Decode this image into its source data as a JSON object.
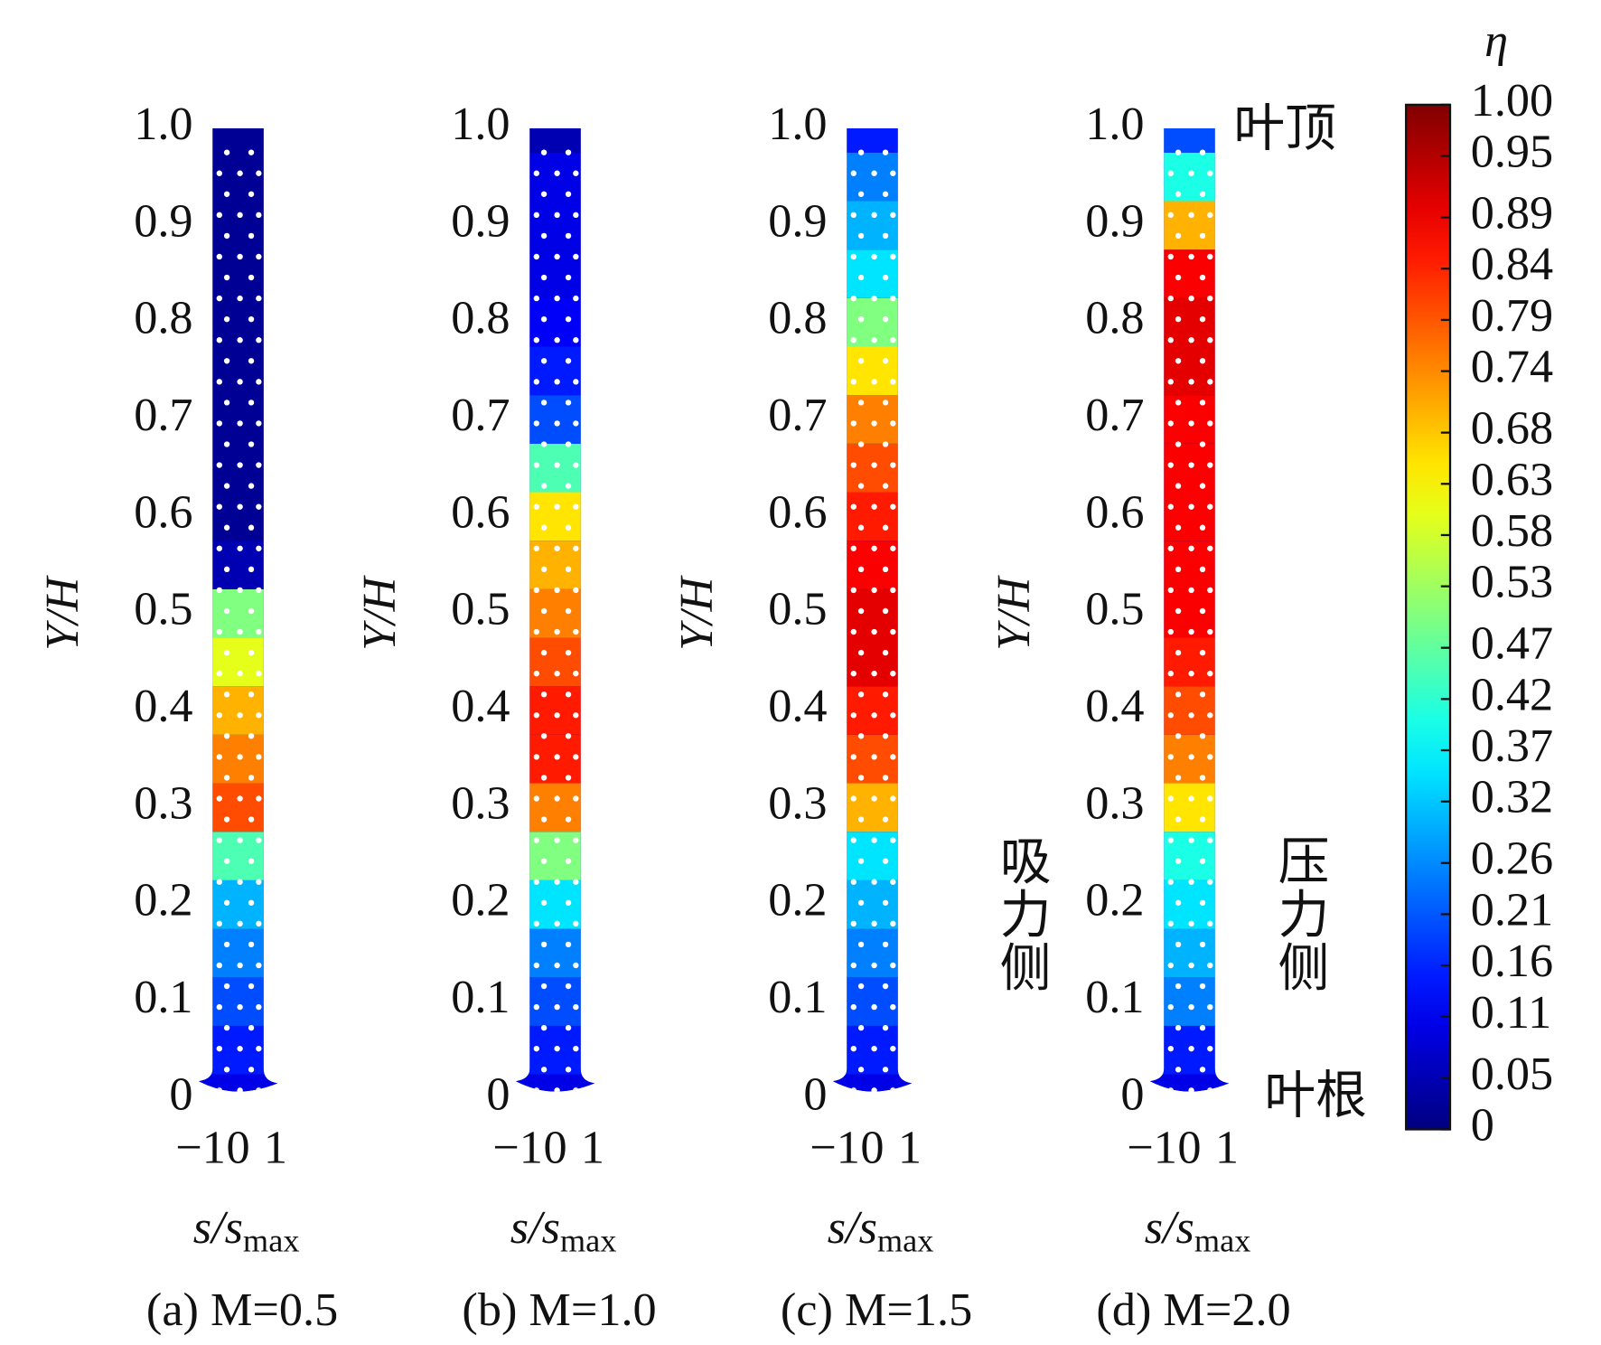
{
  "chart_data": [
    {
      "type": "contour",
      "caption": "(a) M=0.5",
      "y_label": "Y/H",
      "x_label": {
        "main": "s/s",
        "sub": "max"
      },
      "xlim": [
        -1.5,
        1.5
      ],
      "xticks": [
        {
          "value": -1,
          "label": "−1"
        },
        0,
        1
      ],
      "ylim": [
        0,
        1
      ],
      "yticks": [
        0,
        0.1,
        0.2,
        0.3,
        0.4,
        0.5,
        0.6,
        0.7,
        0.8,
        0.9,
        {
          "value": 1,
          "label": "1.0"
        }
      ],
      "y": [
        0,
        0.05,
        0.1,
        0.15,
        0.2,
        0.25,
        0.3,
        0.35,
        0.4,
        0.45,
        0.5,
        0.55,
        0.6,
        0.65,
        0.7,
        0.75,
        0.8,
        0.85,
        0.9,
        0.95,
        1
      ],
      "values": [
        0.1,
        0.15,
        0.2,
        0.25,
        0.3,
        0.45,
        0.8,
        0.75,
        0.7,
        0.6,
        0.5,
        0.05,
        0.02,
        0.02,
        0.02,
        0.02,
        0.02,
        0.02,
        0.02,
        0.02,
        0.02
      ]
    },
    {
      "type": "contour",
      "caption": "(b) M=1.0",
      "y_label": "Y/H",
      "x_label": {
        "main": "s/s",
        "sub": "max"
      },
      "xlim": [
        -1.5,
        1.5
      ],
      "xticks": [
        {
          "value": -1,
          "label": "−1"
        },
        0,
        1
      ],
      "ylim": [
        0,
        1
      ],
      "yticks": [
        0,
        0.1,
        0.2,
        0.3,
        0.4,
        0.5,
        0.6,
        0.7,
        0.8,
        0.9,
        {
          "value": 1,
          "label": "1.0"
        }
      ],
      "y": [
        0,
        0.05,
        0.1,
        0.15,
        0.2,
        0.25,
        0.3,
        0.35,
        0.4,
        0.45,
        0.5,
        0.55,
        0.6,
        0.65,
        0.7,
        0.75,
        0.8,
        0.85,
        0.9,
        0.95,
        1
      ],
      "values": [
        0.1,
        0.15,
        0.2,
        0.25,
        0.35,
        0.5,
        0.75,
        0.85,
        0.85,
        0.8,
        0.75,
        0.7,
        0.65,
        0.45,
        0.2,
        0.15,
        0.12,
        0.1,
        0.1,
        0.1,
        0.05
      ]
    },
    {
      "type": "contour",
      "caption": "(c) M=1.5",
      "y_label": "Y/H",
      "x_label": {
        "main": "s/s",
        "sub": "max"
      },
      "xlim": [
        -1.5,
        1.5
      ],
      "xticks": [
        {
          "value": -1,
          "label": "−1"
        },
        0,
        1
      ],
      "ylim": [
        0,
        1
      ],
      "yticks": [
        0,
        0.1,
        0.2,
        0.3,
        0.4,
        0.5,
        0.6,
        0.7,
        0.8,
        0.9,
        {
          "value": 1,
          "label": "1.0"
        }
      ],
      "y": [
        0,
        0.05,
        0.1,
        0.15,
        0.2,
        0.25,
        0.3,
        0.35,
        0.4,
        0.45,
        0.5,
        0.55,
        0.6,
        0.65,
        0.7,
        0.75,
        0.8,
        0.85,
        0.9,
        0.95,
        1
      ],
      "values": [
        0.1,
        0.15,
        0.2,
        0.25,
        0.3,
        0.35,
        0.7,
        0.8,
        0.85,
        0.9,
        0.9,
        0.88,
        0.85,
        0.8,
        0.75,
        0.65,
        0.5,
        0.35,
        0.3,
        0.25,
        0.15
      ]
    },
    {
      "type": "contour",
      "caption": "(d) M=2.0",
      "y_label": "Y/H",
      "x_label": {
        "main": "s/s",
        "sub": "max"
      },
      "xlim": [
        -1.5,
        1.5
      ],
      "xticks": [
        {
          "value": -1,
          "label": "−1"
        },
        0,
        1
      ],
      "ylim": [
        0,
        1
      ],
      "yticks": [
        0,
        0.1,
        0.2,
        0.3,
        0.4,
        0.5,
        0.6,
        0.7,
        0.8,
        0.9,
        {
          "value": 1,
          "label": "1.0"
        }
      ],
      "y": [
        0,
        0.05,
        0.1,
        0.15,
        0.2,
        0.25,
        0.3,
        0.35,
        0.4,
        0.45,
        0.5,
        0.55,
        0.6,
        0.65,
        0.7,
        0.75,
        0.8,
        0.85,
        0.9,
        0.95,
        1
      ],
      "values": [
        0.1,
        0.15,
        0.25,
        0.3,
        0.35,
        0.4,
        0.65,
        0.75,
        0.8,
        0.85,
        0.88,
        0.88,
        0.88,
        0.88,
        0.88,
        0.9,
        0.9,
        0.88,
        0.7,
        0.4,
        0.2
      ]
    }
  ],
  "colorbar": {
    "title": "η",
    "lim": [
      0,
      1
    ],
    "ticks": [
      0,
      0.05,
      0.11,
      0.16,
      0.21,
      0.26,
      0.32,
      0.37,
      0.42,
      0.47,
      0.53,
      0.58,
      0.63,
      0.68,
      0.74,
      0.79,
      0.84,
      0.89,
      0.95,
      {
        "value": 1,
        "label": "1.00"
      }
    ]
  },
  "annotations": {
    "tip": "叶顶",
    "suction": "吸力侧",
    "pressure": "压力侧",
    "root": "叶根"
  }
}
